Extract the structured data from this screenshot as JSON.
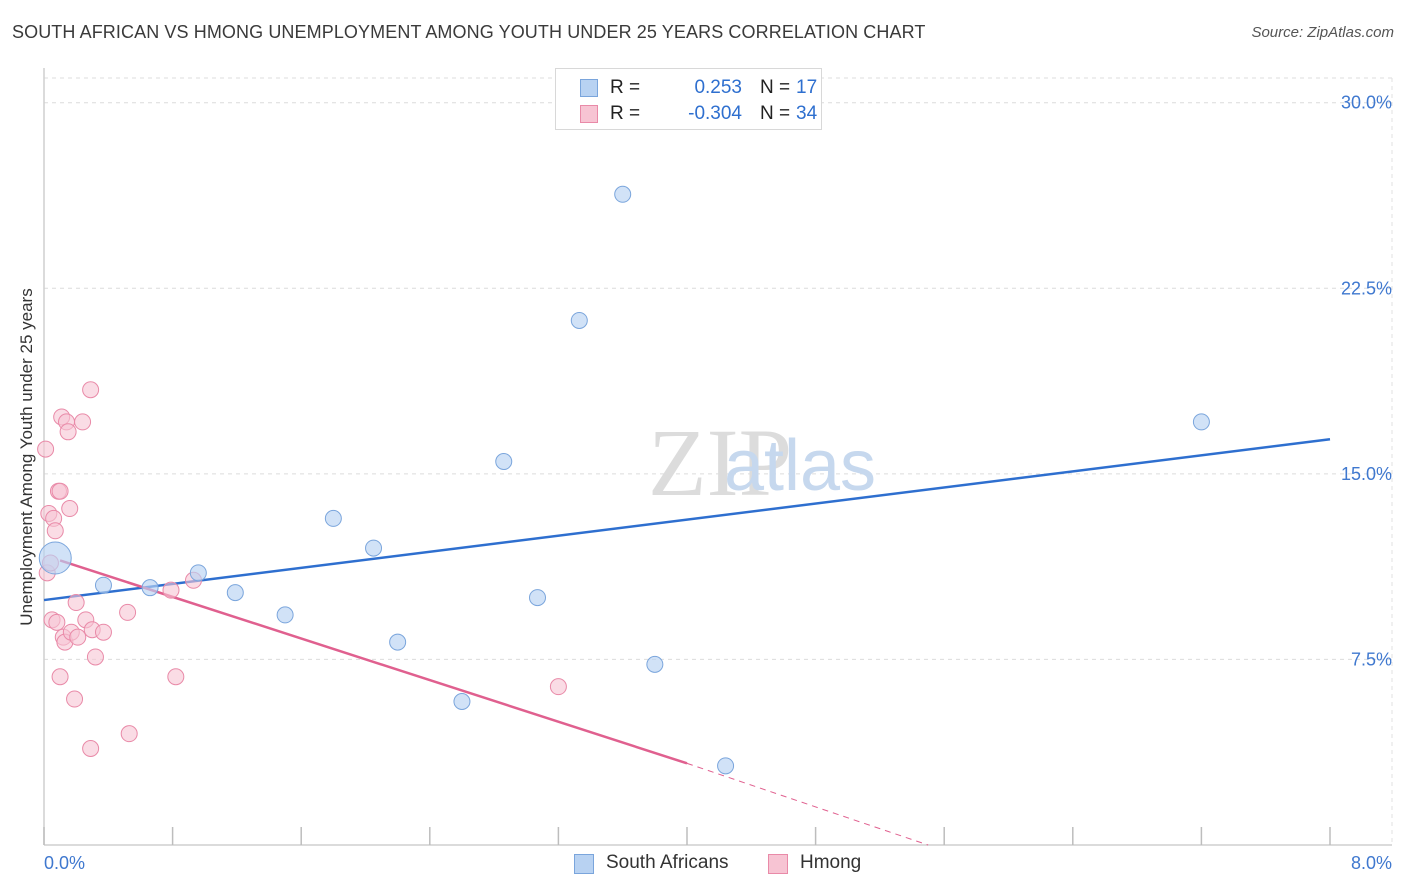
{
  "header": {
    "title": "SOUTH AFRICAN VS HMONG UNEMPLOYMENT AMONG YOUTH UNDER 25 YEARS CORRELATION CHART",
    "source": "Source: ZipAtlas.com"
  },
  "watermark": {
    "zip": "ZIP",
    "atlas": "atlas"
  },
  "legend": {
    "rows": [
      {
        "r_label": "R =",
        "r_value": "0.253",
        "n_label": "N =",
        "n_value": "17"
      },
      {
        "r_label": "R =",
        "r_value": "-0.304",
        "n_label": "N =",
        "n_value": "34"
      }
    ]
  },
  "bottom_legend": {
    "series1": "South Africans",
    "series2": "Hmong"
  },
  "colors": {
    "blue_fill": "#b8d2f2",
    "blue_stroke": "#7aa5dc",
    "blue_line": "#2e6fcf",
    "pink_fill": "#f7c4d3",
    "pink_stroke": "#e98aa8",
    "pink_line": "#e0608f",
    "tick_label": "#3f78cf"
  },
  "chart_data": {
    "type": "scatter",
    "title": "SOUTH AFRICAN VS HMONG UNEMPLOYMENT AMONG YOUTH UNDER 25 YEARS CORRELATION CHART",
    "xlabel": "",
    "ylabel": "Unemployment Among Youth under 25 years",
    "xlim": [
      0,
      8
    ],
    "ylim": [
      0,
      31
    ],
    "x_tick_labels": [
      "0.0%",
      "8.0%"
    ],
    "y_ticks": [
      7.5,
      15.0,
      22.5,
      30.0
    ],
    "y_tick_labels": [
      "7.5%",
      "15.0%",
      "22.5%",
      "30.0%"
    ],
    "grid": true,
    "series": [
      {
        "name": "South Africans",
        "r": 0.253,
        "n": 17,
        "points": [
          {
            "x": 0.07,
            "y": 11.6,
            "big": true
          },
          {
            "x": 0.37,
            "y": 10.5
          },
          {
            "x": 0.66,
            "y": 10.4
          },
          {
            "x": 0.96,
            "y": 11.0
          },
          {
            "x": 1.19,
            "y": 10.2
          },
          {
            "x": 1.5,
            "y": 9.3
          },
          {
            "x": 1.8,
            "y": 13.2
          },
          {
            "x": 2.05,
            "y": 12.0
          },
          {
            "x": 2.2,
            "y": 8.2
          },
          {
            "x": 2.6,
            "y": 5.8
          },
          {
            "x": 2.86,
            "y": 15.5
          },
          {
            "x": 3.07,
            "y": 10.0
          },
          {
            "x": 3.33,
            "y": 21.2
          },
          {
            "x": 3.6,
            "y": 26.3
          },
          {
            "x": 3.8,
            "y": 7.3
          },
          {
            "x": 4.24,
            "y": 3.2
          },
          {
            "x": 7.2,
            "y": 17.1
          }
        ],
        "trend": {
          "x0": 0.0,
          "y0": 9.9,
          "x1": 8.0,
          "y1": 16.4
        }
      },
      {
        "name": "Hmong",
        "r": -0.304,
        "n": 34,
        "points": [
          {
            "x": 0.01,
            "y": 16.0
          },
          {
            "x": 0.02,
            "y": 11.0
          },
          {
            "x": 0.03,
            "y": 13.4
          },
          {
            "x": 0.04,
            "y": 11.4
          },
          {
            "x": 0.05,
            "y": 9.1
          },
          {
            "x": 0.06,
            "y": 13.2
          },
          {
            "x": 0.07,
            "y": 12.7
          },
          {
            "x": 0.08,
            "y": 9.0
          },
          {
            "x": 0.09,
            "y": 14.3
          },
          {
            "x": 0.1,
            "y": 14.3
          },
          {
            "x": 0.1,
            "y": 6.8
          },
          {
            "x": 0.11,
            "y": 17.3
          },
          {
            "x": 0.12,
            "y": 8.4
          },
          {
            "x": 0.13,
            "y": 8.2
          },
          {
            "x": 0.14,
            "y": 17.1
          },
          {
            "x": 0.15,
            "y": 16.7
          },
          {
            "x": 0.16,
            "y": 13.6
          },
          {
            "x": 0.17,
            "y": 8.6
          },
          {
            "x": 0.19,
            "y": 5.9
          },
          {
            "x": 0.2,
            "y": 9.8
          },
          {
            "x": 0.21,
            "y": 8.4
          },
          {
            "x": 0.24,
            "y": 17.1
          },
          {
            "x": 0.26,
            "y": 9.1
          },
          {
            "x": 0.3,
            "y": 8.7
          },
          {
            "x": 0.32,
            "y": 7.6
          },
          {
            "x": 0.29,
            "y": 3.9
          },
          {
            "x": 0.29,
            "y": 18.4
          },
          {
            "x": 0.37,
            "y": 8.6
          },
          {
            "x": 0.52,
            "y": 9.4
          },
          {
            "x": 0.53,
            "y": 4.5
          },
          {
            "x": 0.79,
            "y": 10.3
          },
          {
            "x": 0.82,
            "y": 6.8
          },
          {
            "x": 0.93,
            "y": 10.7
          },
          {
            "x": 3.2,
            "y": 6.4
          }
        ],
        "trend": {
          "x0": 0.1,
          "y0": 11.5,
          "x1": 4.0,
          "y1": 3.3
        },
        "trend_dashed": {
          "x0": 4.0,
          "y0": 3.3,
          "x1": 5.5,
          "y1": 0.0
        }
      }
    ]
  }
}
